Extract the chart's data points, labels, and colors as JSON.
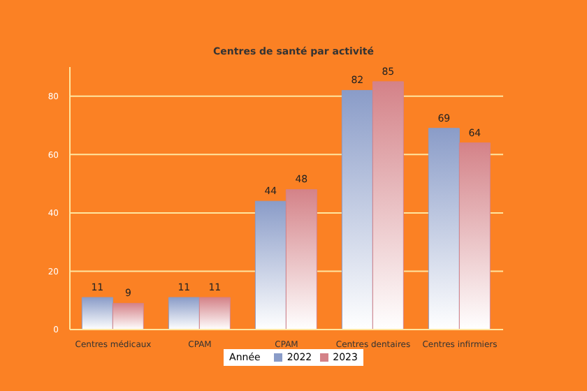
{
  "chart_data": {
    "type": "bar",
    "title": "Centres de santé par activité",
    "categories": [
      "Centres médicaux",
      "CPAM",
      "CPAM",
      "Centres dentaires",
      "Centres infirmiers"
    ],
    "series": [
      {
        "name": "2022",
        "color": "#8a9cc8",
        "values": [
          11,
          11,
          44,
          82,
          69
        ]
      },
      {
        "name": "2023",
        "color": "#d48288",
        "values": [
          9,
          11,
          48,
          85,
          64
        ]
      }
    ],
    "legend_title": "Année",
    "legend": "bottom",
    "data_labels": true,
    "grid": "y",
    "ylim": [
      0,
      90
    ],
    "yticks": [
      0,
      20,
      40,
      60,
      80
    ]
  }
}
